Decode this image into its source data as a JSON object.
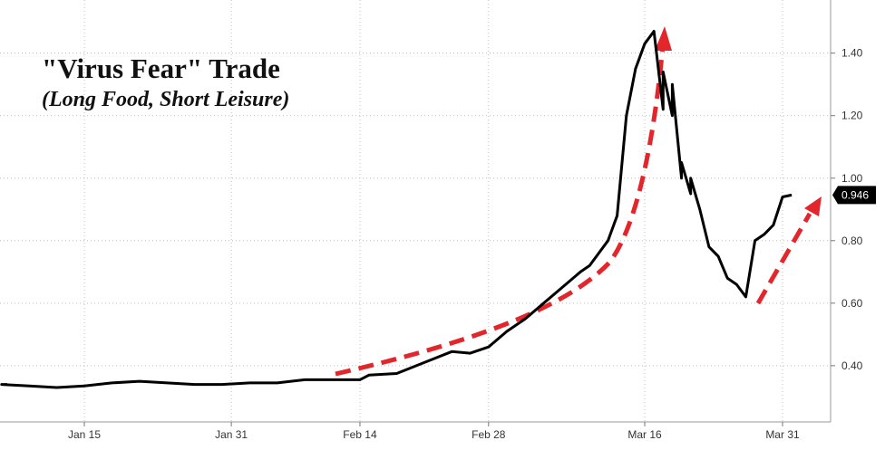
{
  "chart_data": {
    "type": "line",
    "title": "\"Virus Fear\" Trade",
    "subtitle": "(Long Food, Short Leisure)",
    "xlabel": "",
    "ylabel": "",
    "ylim": [
      0.22,
      1.57
    ],
    "x_ticks": [
      "Jan 15",
      "Jan 31",
      "Feb 14",
      "Feb 28",
      "Mar 16",
      "Mar 31"
    ],
    "y_ticks": [
      "0.40",
      "0.60",
      "0.80",
      "1.00",
      "1.20",
      "1.40"
    ],
    "y_tick_values": [
      0.4,
      0.6,
      0.8,
      1.0,
      1.2,
      1.4
    ],
    "last_value_label": "0.946",
    "last_value": 0.946,
    "grid": true,
    "line_color": "#000000",
    "annotation_color": "#e3262b",
    "series": [
      {
        "x": [
          "2020-01-06",
          "2020-01-09",
          "2020-01-12",
          "2020-01-15",
          "2020-01-18",
          "2020-01-21",
          "2020-01-24",
          "2020-01-27",
          "2020-01-30",
          "2020-02-02",
          "2020-02-05",
          "2020-02-08",
          "2020-02-11",
          "2020-02-14",
          "2020-02-15",
          "2020-02-18",
          "2020-02-21",
          "2020-02-24",
          "2020-02-26",
          "2020-02-28",
          "2020-03-01",
          "2020-03-03",
          "2020-03-05",
          "2020-03-07",
          "2020-03-09",
          "2020-03-10",
          "2020-03-12",
          "2020-03-13",
          "2020-03-14",
          "2020-03-15",
          "2020-03-16",
          "2020-03-17",
          "2020-03-18",
          "2020-03-18",
          "2020-03-19",
          "2020-03-19",
          "2020-03-20",
          "2020-03-20",
          "2020-03-21",
          "2020-03-21",
          "2020-03-22",
          "2020-03-23",
          "2020-03-24",
          "2020-03-25",
          "2020-03-26",
          "2020-03-27",
          "2020-03-28",
          "2020-03-29",
          "2020-03-30",
          "2020-03-31",
          "2020-04-01"
        ],
        "y": [
          0.34,
          0.335,
          0.33,
          0.335,
          0.345,
          0.35,
          0.345,
          0.34,
          0.34,
          0.345,
          0.345,
          0.355,
          0.355,
          0.355,
          0.37,
          0.375,
          0.41,
          0.445,
          0.44,
          0.46,
          0.51,
          0.55,
          0.6,
          0.65,
          0.7,
          0.72,
          0.8,
          0.88,
          1.2,
          1.35,
          1.43,
          1.47,
          1.22,
          1.34,
          1.2,
          1.3,
          1.0,
          1.05,
          0.95,
          1.0,
          0.9,
          0.78,
          0.75,
          0.68,
          0.66,
          0.62,
          0.8,
          0.82,
          0.85,
          0.94,
          0.946
        ]
      }
    ]
  }
}
